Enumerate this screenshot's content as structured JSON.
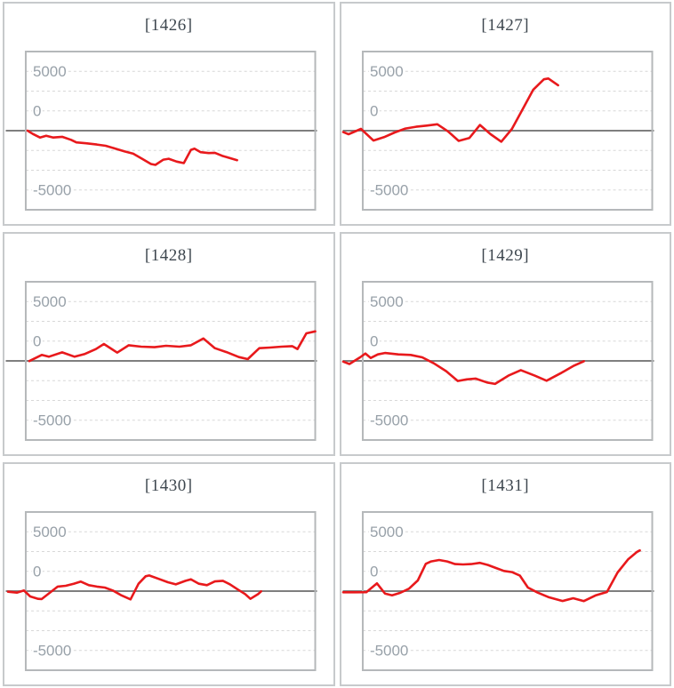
{
  "page": {
    "background": "#ffffff"
  },
  "colors": {
    "panel_border": "#c7cacc",
    "chart_box_border": "#b5b8ba",
    "gridline": "#d7d7d7",
    "zero_line": "#7f7f7f",
    "series_red": "#e8191c",
    "title_text": "#3d464e",
    "tick_text": "#98a1a9"
  },
  "chart_data": {
    "type": "line",
    "layout": {
      "rows": 3,
      "cols": 2,
      "legend": "none",
      "grid": "dashed-horizontal"
    },
    "y_axis": {
      "tick_labels": [
        "5000",
        "0",
        "-5000"
      ],
      "tick_values": [
        5000,
        0,
        -5000
      ],
      "ylim": [
        -6680,
        6680
      ],
      "minor_gridline_interval": 1666.7
    },
    "x_axis": {
      "visible": false
    },
    "point_format": "[x_px_within_panel, value_in_units]",
    "panels": [
      {
        "title": "[1426]",
        "series_color": "#e8191c",
        "points": [
          [
            26,
            0
          ],
          [
            32,
            -275
          ],
          [
            40,
            -575
          ],
          [
            47,
            -425
          ],
          [
            55,
            -575
          ],
          [
            65,
            -520
          ],
          [
            75,
            -770
          ],
          [
            81,
            -990
          ],
          [
            92,
            -1065
          ],
          [
            104,
            -1170
          ],
          [
            114,
            -1270
          ],
          [
            125,
            -1515
          ],
          [
            135,
            -1740
          ],
          [
            145,
            -1940
          ],
          [
            155,
            -2365
          ],
          [
            165,
            -2810
          ],
          [
            170,
            -2885
          ],
          [
            179,
            -2440
          ],
          [
            185,
            -2365
          ],
          [
            194,
            -2610
          ],
          [
            202,
            -2735
          ],
          [
            210,
            -1615
          ],
          [
            214,
            -1515
          ],
          [
            221,
            -1815
          ],
          [
            230,
            -1890
          ],
          [
            237,
            -1865
          ],
          [
            245,
            -2110
          ],
          [
            254,
            -2315
          ],
          [
            262,
            -2485
          ]
        ]
      },
      {
        "title": "[1427]",
        "series_color": "#e8191c",
        "points": [
          [
            2,
            -120
          ],
          [
            8,
            -300
          ],
          [
            22,
            150
          ],
          [
            36,
            -830
          ],
          [
            48,
            -550
          ],
          [
            60,
            -150
          ],
          [
            72,
            180
          ],
          [
            84,
            330
          ],
          [
            96,
            430
          ],
          [
            108,
            540
          ],
          [
            120,
            -60
          ],
          [
            132,
            -860
          ],
          [
            144,
            -620
          ],
          [
            156,
            480
          ],
          [
            168,
            -300
          ],
          [
            180,
            -930
          ],
          [
            192,
            150
          ],
          [
            204,
            1800
          ],
          [
            216,
            3450
          ],
          [
            228,
            4330
          ],
          [
            233,
            4400
          ],
          [
            244,
            3830
          ]
        ]
      },
      {
        "title": "[1428]",
        "series_color": "#e8191c",
        "points": [
          [
            28,
            -15
          ],
          [
            42,
            500
          ],
          [
            50,
            350
          ],
          [
            65,
            720
          ],
          [
            79,
            350
          ],
          [
            90,
            570
          ],
          [
            103,
            1000
          ],
          [
            112,
            1420
          ],
          [
            127,
            700
          ],
          [
            140,
            1320
          ],
          [
            154,
            1200
          ],
          [
            169,
            1150
          ],
          [
            182,
            1270
          ],
          [
            197,
            1200
          ],
          [
            210,
            1320
          ],
          [
            224,
            1890
          ],
          [
            237,
            1070
          ],
          [
            250,
            745
          ],
          [
            264,
            325
          ],
          [
            274,
            150
          ],
          [
            287,
            1070
          ],
          [
            299,
            1120
          ],
          [
            312,
            1195
          ],
          [
            324,
            1245
          ],
          [
            330,
            1000
          ],
          [
            340,
            2320
          ],
          [
            350,
            2490
          ]
        ]
      },
      {
        "title": "[1429]",
        "series_color": "#e8191c",
        "points": [
          [
            2,
            -60
          ],
          [
            9,
            -260
          ],
          [
            21,
            300
          ],
          [
            27,
            620
          ],
          [
            33,
            250
          ],
          [
            41,
            550
          ],
          [
            49,
            670
          ],
          [
            64,
            550
          ],
          [
            78,
            500
          ],
          [
            91,
            300
          ],
          [
            104,
            -200
          ],
          [
            118,
            -870
          ],
          [
            131,
            -1690
          ],
          [
            141,
            -1560
          ],
          [
            151,
            -1490
          ],
          [
            164,
            -1820
          ],
          [
            173,
            -1940
          ],
          [
            188,
            -1240
          ],
          [
            202,
            -780
          ],
          [
            218,
            -1250
          ],
          [
            231,
            -1670
          ],
          [
            248,
            -1000
          ],
          [
            262,
            -400
          ],
          [
            273,
            -30
          ]
        ]
      },
      {
        "title": "[1430]",
        "series_color": "#e8191c",
        "points": [
          [
            4,
            -50
          ],
          [
            14,
            -125
          ],
          [
            22,
            50
          ],
          [
            29,
            -450
          ],
          [
            38,
            -650
          ],
          [
            42,
            -670
          ],
          [
            60,
            380
          ],
          [
            69,
            450
          ],
          [
            78,
            620
          ],
          [
            86,
            800
          ],
          [
            95,
            500
          ],
          [
            104,
            380
          ],
          [
            113,
            300
          ],
          [
            122,
            50
          ],
          [
            131,
            -330
          ],
          [
            142,
            -700
          ],
          [
            151,
            620
          ],
          [
            159,
            1250
          ],
          [
            163,
            1320
          ],
          [
            175,
            1000
          ],
          [
            184,
            750
          ],
          [
            193,
            570
          ],
          [
            204,
            870
          ],
          [
            210,
            1000
          ],
          [
            219,
            620
          ],
          [
            228,
            500
          ],
          [
            237,
            820
          ],
          [
            246,
            870
          ],
          [
            254,
            570
          ],
          [
            263,
            130
          ],
          [
            271,
            -250
          ],
          [
            277,
            -650
          ],
          [
            286,
            -230
          ],
          [
            289,
            -20
          ]
        ]
      },
      {
        "title": "[1431]",
        "series_color": "#e8191c",
        "points": [
          [
            2,
            -100
          ],
          [
            15,
            -100
          ],
          [
            28,
            -90
          ],
          [
            40,
            650
          ],
          [
            49,
            -200
          ],
          [
            57,
            -350
          ],
          [
            66,
            -150
          ],
          [
            76,
            200
          ],
          [
            86,
            900
          ],
          [
            95,
            2300
          ],
          [
            101,
            2500
          ],
          [
            110,
            2620
          ],
          [
            119,
            2500
          ],
          [
            128,
            2280
          ],
          [
            137,
            2250
          ],
          [
            146,
            2280
          ],
          [
            156,
            2380
          ],
          [
            165,
            2200
          ],
          [
            174,
            1950
          ],
          [
            183,
            1700
          ],
          [
            192,
            1600
          ],
          [
            201,
            1300
          ],
          [
            210,
            300
          ],
          [
            221,
            -130
          ],
          [
            233,
            -500
          ],
          [
            249,
            -830
          ],
          [
            261,
            -600
          ],
          [
            273,
            -840
          ],
          [
            286,
            -370
          ],
          [
            299,
            -75
          ],
          [
            311,
            1570
          ],
          [
            323,
            2690
          ],
          [
            333,
            3310
          ],
          [
            336,
            3430
          ]
        ]
      }
    ]
  }
}
